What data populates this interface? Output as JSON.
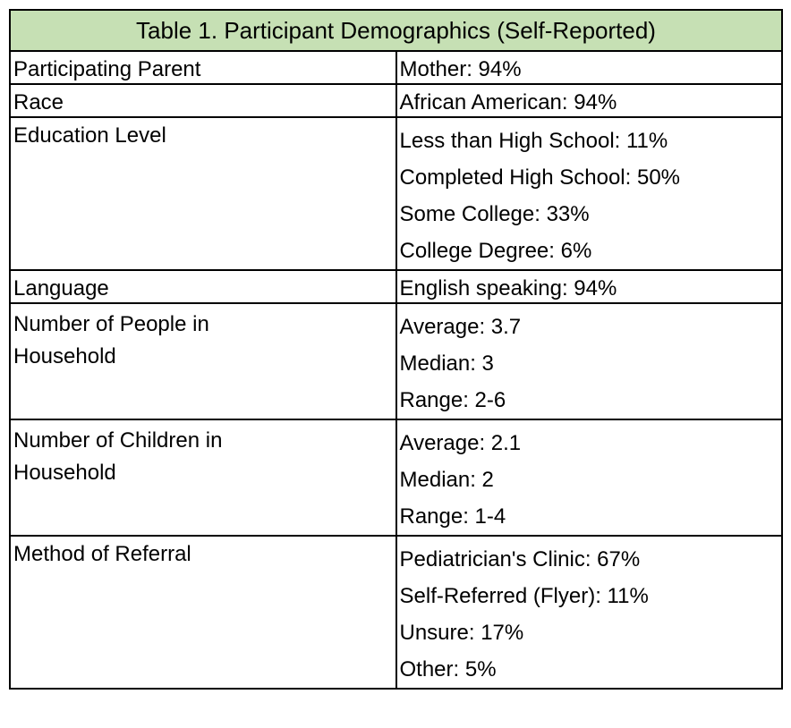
{
  "table": {
    "title": "Table 1. Participant Demographics (Self-Reported)",
    "rows": [
      {
        "label": "Participating Parent",
        "values": [
          "Mother: 94%"
        ]
      },
      {
        "label": "Race",
        "values": [
          "African American: 94%"
        ]
      },
      {
        "label": "Education Level",
        "values": [
          "Less than High School: 11%",
          "Completed High School: 50%",
          "Some College: 33%",
          "College Degree: 6%"
        ]
      },
      {
        "label": "Language",
        "values": [
          "English speaking: 94%"
        ]
      },
      {
        "label_lines": [
          "Number of People in",
          "Household"
        ],
        "values": [
          "Average: 3.7",
          "Median: 3",
          "Range: 2-6"
        ]
      },
      {
        "label_lines": [
          "Number of Children in",
          "Household"
        ],
        "values": [
          "Average: 2.1",
          "Median: 2",
          "Range: 1-4"
        ]
      },
      {
        "label": "Method of Referral",
        "values": [
          "Pediatrician's Clinic: 67%",
          "Self-Referred (Flyer): 11%",
          "Unsure: 17%",
          "Other: 5%"
        ]
      }
    ]
  },
  "colors": {
    "header_fill": "#c6e0b4",
    "border": "#000000"
  }
}
